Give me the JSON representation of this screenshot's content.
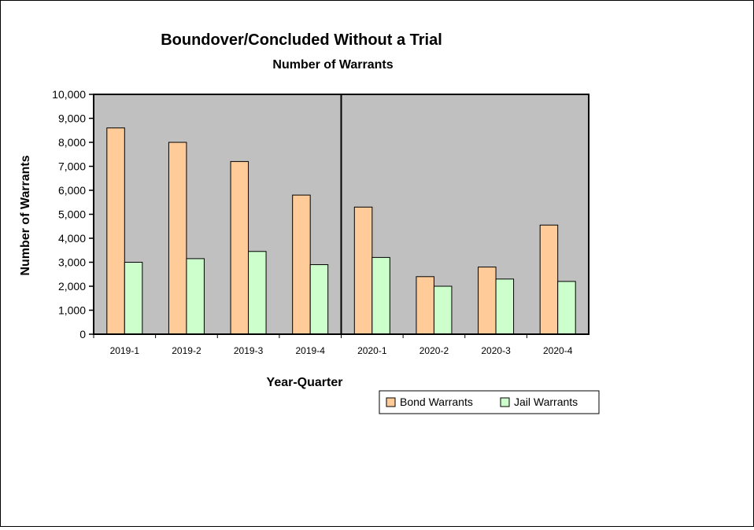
{
  "chart_data": {
    "type": "bar",
    "title": "Boundover/Concluded Without a Trial",
    "subtitle": "Number of Warrants",
    "xlabel": "Year-Quarter",
    "ylabel": "Number of Warrants",
    "categories": [
      "2019-1",
      "2019-2",
      "2019-3",
      "2019-4",
      "2020-1",
      "2020-2",
      "2020-3",
      "2020-4"
    ],
    "series": [
      {
        "name": "Bond Warrants",
        "color": "#ffcc99",
        "values": [
          8600,
          8000,
          7200,
          5800,
          5300,
          2400,
          2800,
          4550
        ]
      },
      {
        "name": "Jail Warrants",
        "color": "#ccffcc",
        "values": [
          3000,
          3150,
          3450,
          2900,
          3200,
          2000,
          2300,
          2200
        ]
      }
    ],
    "ylim": [
      0,
      10000
    ],
    "yticks": [
      0,
      1000,
      2000,
      3000,
      4000,
      5000,
      6000,
      7000,
      8000,
      9000,
      10000
    ],
    "ytick_labels": [
      "0",
      "1,000",
      "2,000",
      "3,000",
      "4,000",
      "5,000",
      "6,000",
      "7,000",
      "8,000",
      "9,000",
      "10,000"
    ],
    "plot_background": "#c0c0c0",
    "divider_after_category": "2019-4",
    "grid": false,
    "legend_position": "bottom-right"
  }
}
